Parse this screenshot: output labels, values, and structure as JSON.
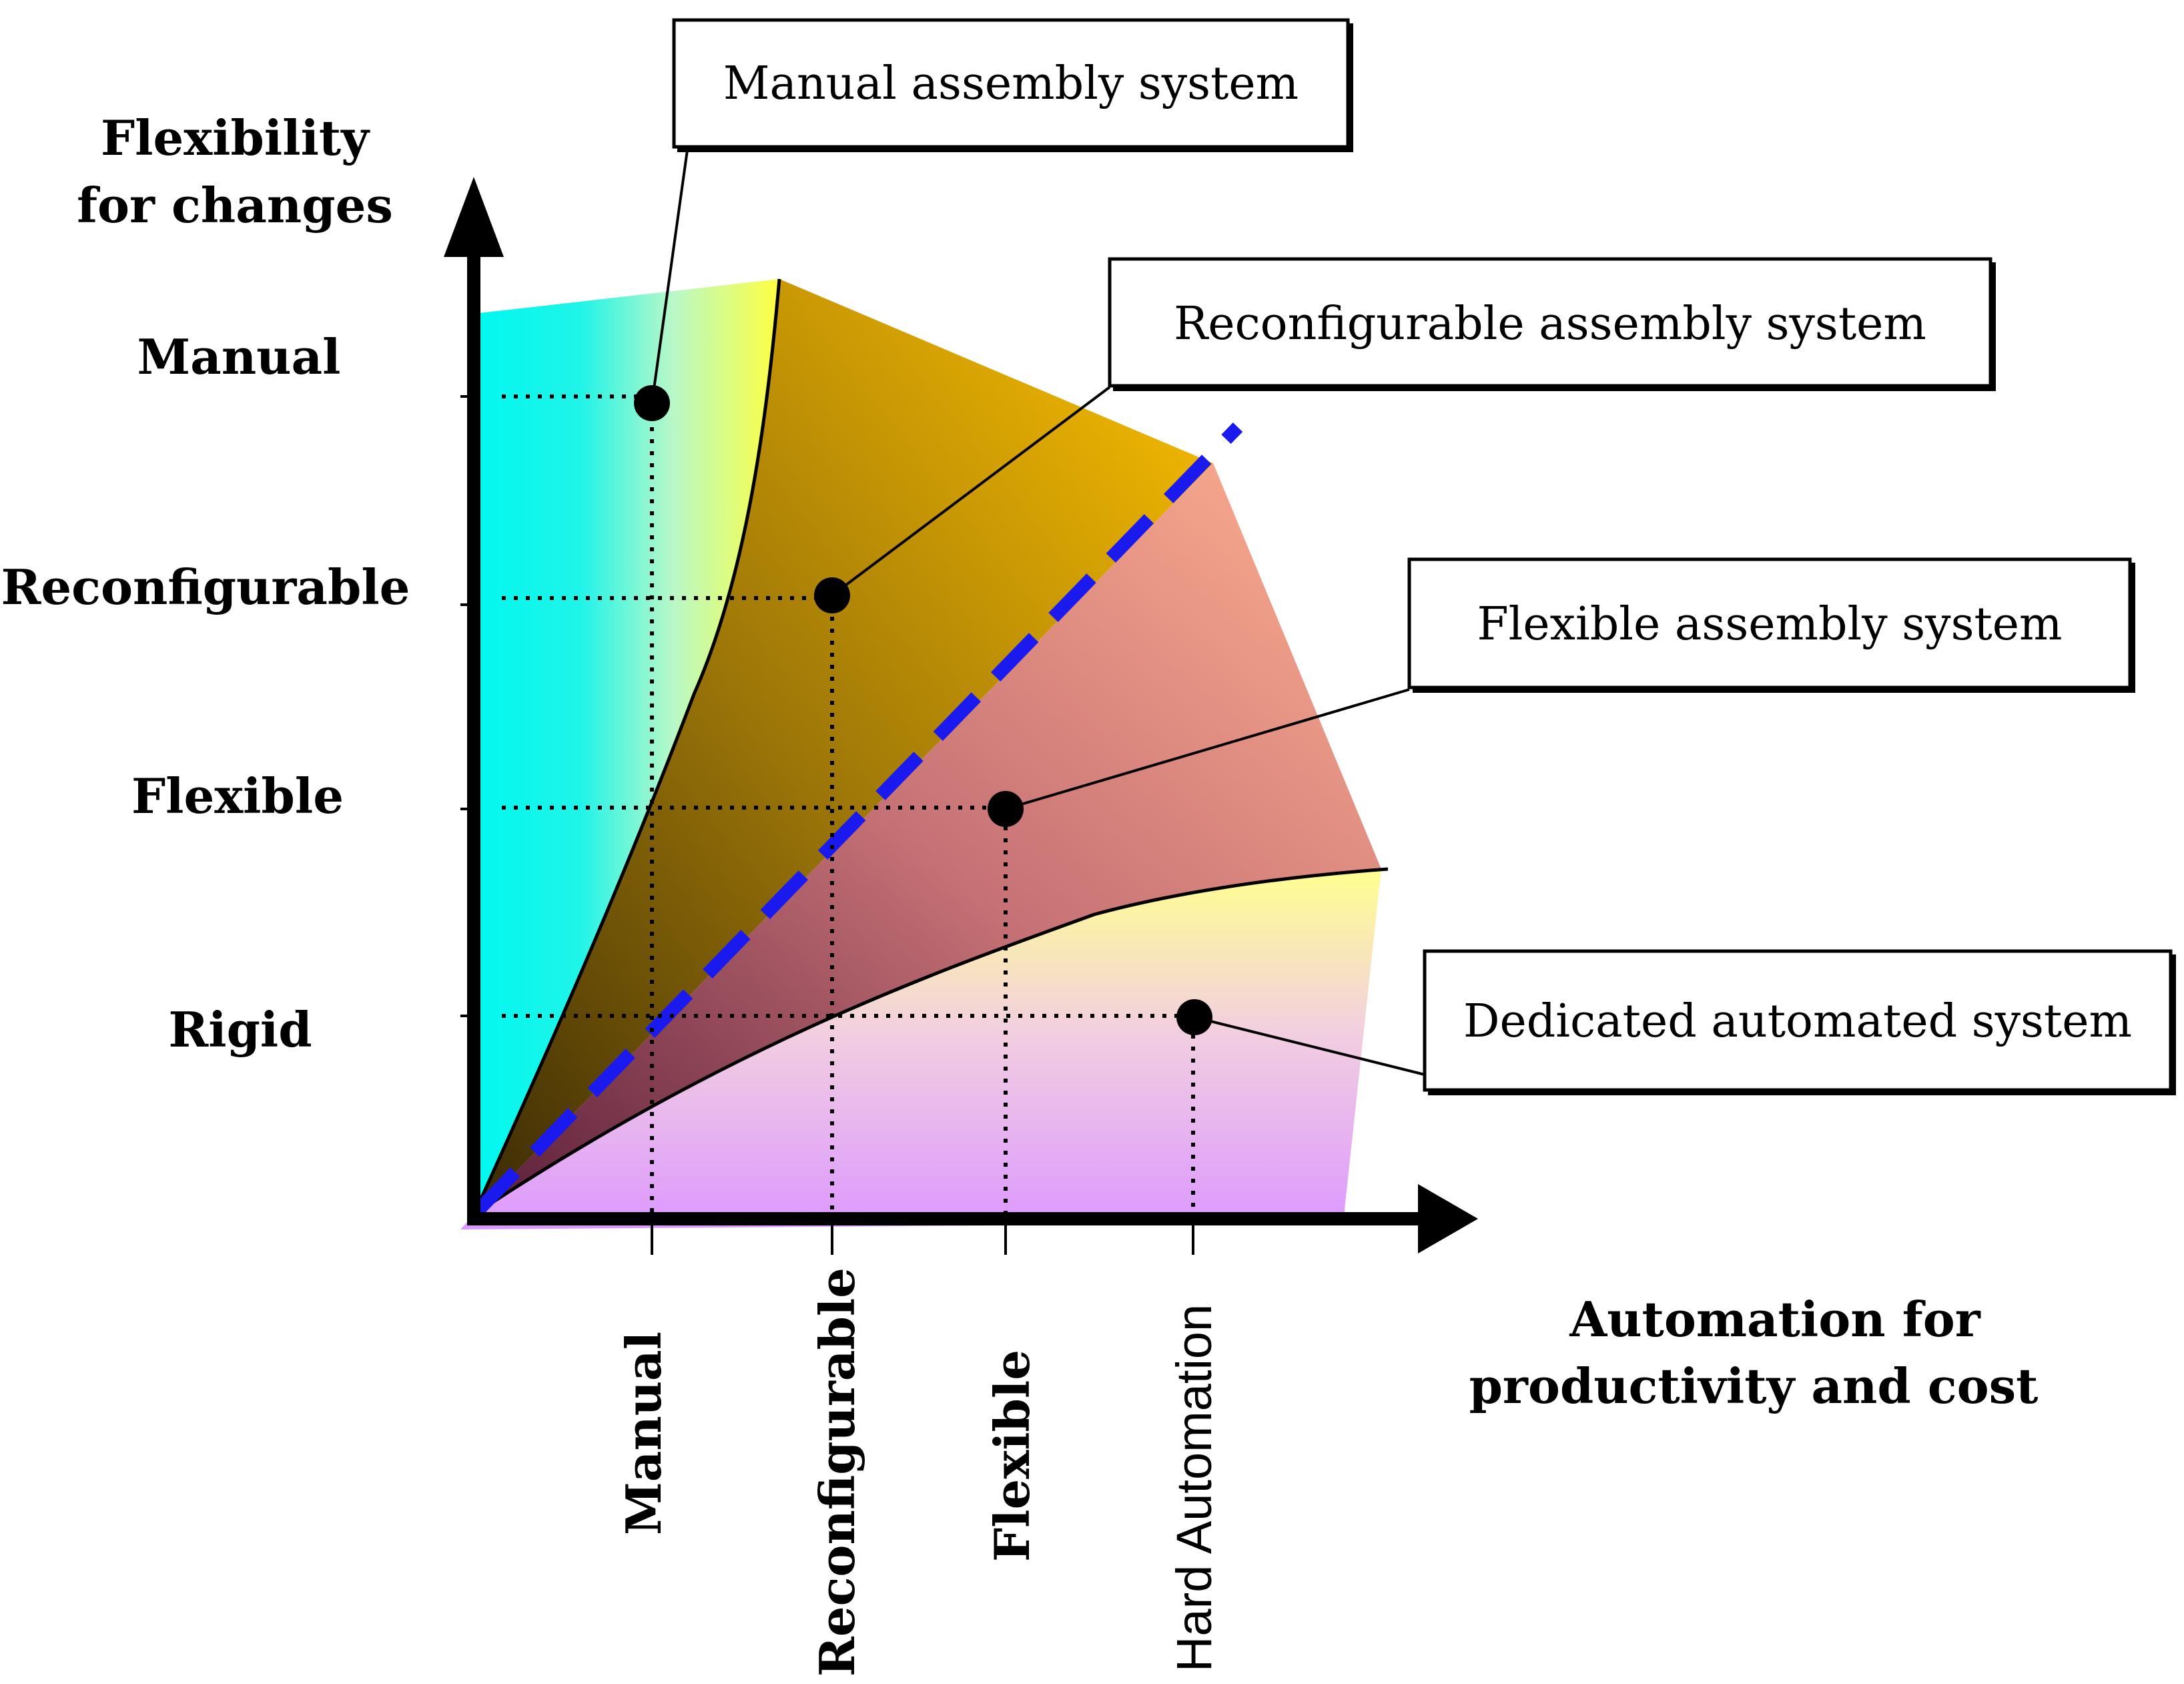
{
  "y_axis": {
    "title_lines": [
      "Flexibility",
      "for changes"
    ],
    "ticks": [
      "Manual",
      "Reconfigurable",
      "Flexible",
      "Rigid"
    ]
  },
  "x_axis": {
    "title_lines": [
      "Automation for",
      "productivity and cost"
    ],
    "ticks": [
      "Manual",
      "Reconfigurable",
      "Flexible",
      "Hard Automation"
    ]
  },
  "callouts": {
    "manual": "Manual assembly system",
    "reconfigurable": "Reconfigurable assembly system",
    "flexible": "Flexible assembly system",
    "dedicated": "Dedicated automated system"
  },
  "colors": {
    "manual_region": "#00f0f0",
    "reconfigurable_region": "#c89a00",
    "flexible_region": "#e7908a",
    "dedicated_region": "#e29cf0",
    "diagonal": "#1a1aee"
  }
}
